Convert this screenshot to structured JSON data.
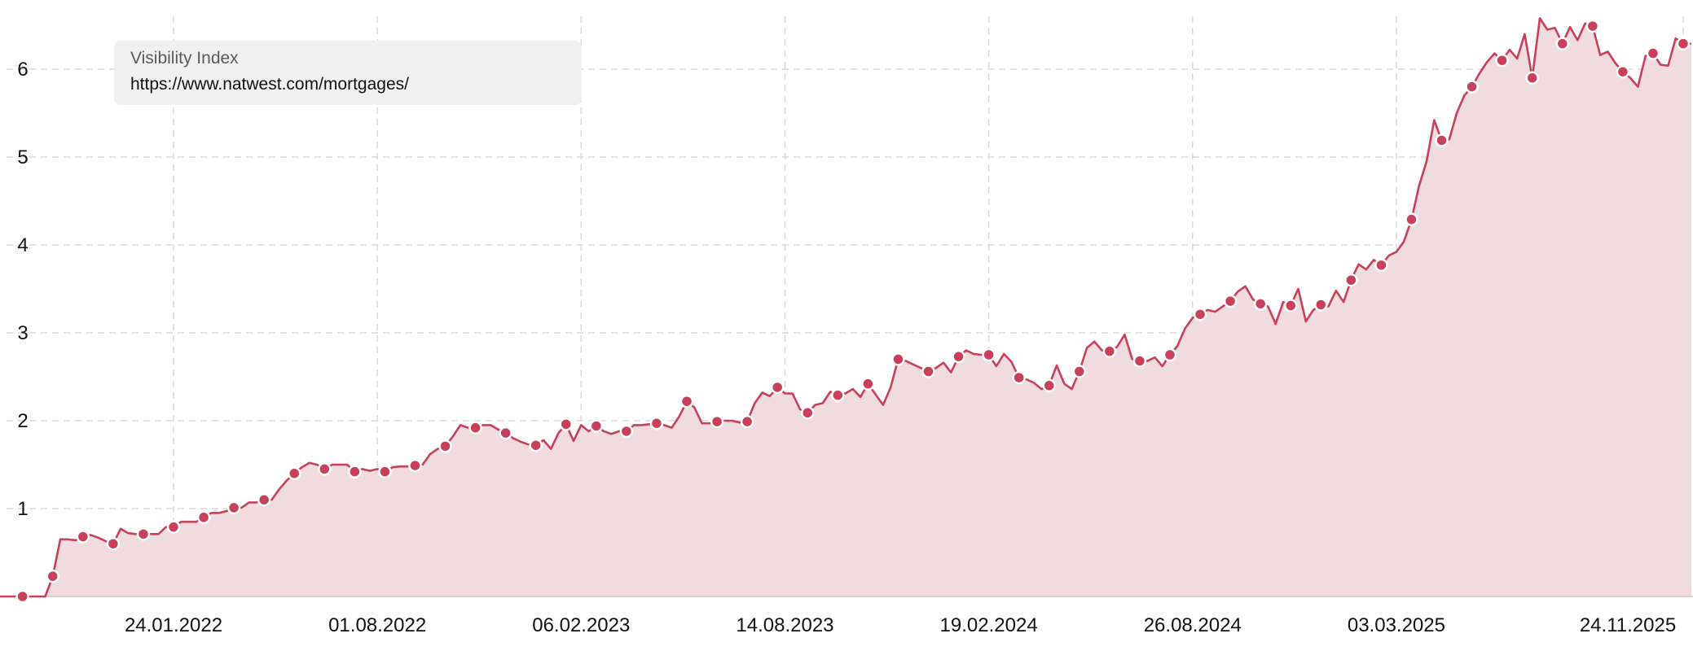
{
  "legend": {
    "title": "Visibility Index",
    "url": "https://www.natwest.com/mortgages/"
  },
  "colors": {
    "line": "#c8405a",
    "fill": "#f0dbde",
    "grid": "#d9d9d9",
    "legend_bg": "#f0f0f0"
  },
  "chart_data": {
    "type": "area",
    "title": "",
    "xlabel": "",
    "ylabel": "",
    "ylim": [
      0,
      6.6
    ],
    "yticks": [
      "1",
      "2",
      "3",
      "4",
      "5",
      "6"
    ],
    "ytick_values": [
      1,
      2,
      3,
      4,
      5,
      6
    ],
    "xticks": [
      "24.01.2022",
      "01.08.2022",
      "06.02.2023",
      "14.08.2023",
      "19.02.2024",
      "26.08.2024",
      "03.03.2025",
      "24.11.2025"
    ],
    "xtick_dates": [
      "2022-01-24",
      "2022-08-01",
      "2023-02-06",
      "2023-08-14",
      "2024-02-19",
      "2024-08-26",
      "2025-03-03",
      "2025-11-24"
    ],
    "grid": true,
    "markers": "every 4th point",
    "series": [
      {
        "name": "https://www.natwest.com/mortgages/",
        "x": [
          "2021-08-16",
          "2021-08-23",
          "2021-08-30",
          "2021-09-06",
          "2021-09-13",
          "2021-09-20",
          "2021-09-27",
          "2021-10-04",
          "2021-10-11",
          "2021-10-18",
          "2021-10-25",
          "2021-11-01",
          "2021-11-08",
          "2021-11-15",
          "2021-11-22",
          "2021-11-29",
          "2021-12-06",
          "2021-12-13",
          "2021-12-20",
          "2021-12-27",
          "2022-01-03",
          "2022-01-10",
          "2022-01-17",
          "2022-01-24",
          "2022-01-31",
          "2022-02-07",
          "2022-02-14",
          "2022-02-21",
          "2022-02-28",
          "2022-03-07",
          "2022-03-14",
          "2022-03-21",
          "2022-03-28",
          "2022-04-04",
          "2022-04-11",
          "2022-04-18",
          "2022-04-25",
          "2022-05-02",
          "2022-05-09",
          "2022-05-16",
          "2022-05-23",
          "2022-05-30",
          "2022-06-06",
          "2022-06-13",
          "2022-06-20",
          "2022-06-27",
          "2022-07-04",
          "2022-07-11",
          "2022-07-18",
          "2022-07-25",
          "2022-08-01",
          "2022-08-08",
          "2022-08-15",
          "2022-08-22",
          "2022-08-29",
          "2022-09-05",
          "2022-09-12",
          "2022-09-19",
          "2022-09-26",
          "2022-10-03",
          "2022-10-10",
          "2022-10-17",
          "2022-10-24",
          "2022-10-31",
          "2022-11-07",
          "2022-11-14",
          "2022-11-21",
          "2022-11-28",
          "2022-12-05",
          "2022-12-12",
          "2022-12-19",
          "2022-12-26",
          "2023-01-02",
          "2023-01-09",
          "2023-01-16",
          "2023-01-23",
          "2023-01-30",
          "2023-02-06",
          "2023-02-13",
          "2023-02-20",
          "2023-02-27",
          "2023-03-06",
          "2023-03-13",
          "2023-03-20",
          "2023-03-27",
          "2023-04-03",
          "2023-04-10",
          "2023-04-17",
          "2023-04-24",
          "2023-05-01",
          "2023-05-08",
          "2023-05-15",
          "2023-05-22",
          "2023-05-29",
          "2023-06-05",
          "2023-06-12",
          "2023-06-19",
          "2023-06-26",
          "2023-07-03",
          "2023-07-10",
          "2023-07-17",
          "2023-07-24",
          "2023-07-31",
          "2023-08-07",
          "2023-08-14",
          "2023-08-21",
          "2023-08-28",
          "2023-09-04",
          "2023-09-11",
          "2023-09-18",
          "2023-09-25",
          "2023-10-02",
          "2023-10-09",
          "2023-10-16",
          "2023-10-23",
          "2023-10-30",
          "2023-11-06",
          "2023-11-13",
          "2023-11-20",
          "2023-11-27",
          "2023-12-04",
          "2023-12-11",
          "2023-12-18",
          "2023-12-25",
          "2024-01-01",
          "2024-01-08",
          "2024-01-15",
          "2024-01-22",
          "2024-01-29",
          "2024-02-05",
          "2024-02-12",
          "2024-02-19",
          "2024-02-26",
          "2024-03-04",
          "2024-03-11",
          "2024-03-18",
          "2024-03-25",
          "2024-04-01",
          "2024-04-08",
          "2024-04-15",
          "2024-04-22",
          "2024-04-29",
          "2024-05-06",
          "2024-05-13",
          "2024-05-20",
          "2024-05-27",
          "2024-06-03",
          "2024-06-10",
          "2024-06-17",
          "2024-06-24",
          "2024-07-01",
          "2024-07-08",
          "2024-07-15",
          "2024-07-22",
          "2024-07-29",
          "2024-08-05",
          "2024-08-12",
          "2024-08-19",
          "2024-08-26",
          "2024-09-02",
          "2024-09-09",
          "2024-09-16",
          "2024-09-23",
          "2024-09-30",
          "2024-10-07",
          "2024-10-14",
          "2024-10-21",
          "2024-10-28",
          "2024-11-04",
          "2024-11-11",
          "2024-11-18",
          "2024-11-25",
          "2024-12-02",
          "2024-12-09",
          "2024-12-16",
          "2024-12-23",
          "2024-12-30",
          "2025-01-06",
          "2025-01-13",
          "2025-01-20",
          "2025-01-27",
          "2025-02-03",
          "2025-02-10",
          "2025-02-17",
          "2025-02-24",
          "2025-03-03",
          "2025-03-10",
          "2025-03-17",
          "2025-03-24",
          "2025-03-31",
          "2025-04-07",
          "2025-04-14",
          "2025-04-21",
          "2025-04-28",
          "2025-05-05",
          "2025-05-12",
          "2025-05-19",
          "2025-05-26",
          "2025-06-02",
          "2025-06-09",
          "2025-06-16",
          "2025-06-23",
          "2025-06-30",
          "2025-07-07",
          "2025-07-14",
          "2025-07-21",
          "2025-07-28",
          "2025-08-04",
          "2025-08-11",
          "2025-08-18",
          "2025-08-25",
          "2025-09-01",
          "2025-09-08",
          "2025-09-15",
          "2025-09-22",
          "2025-09-29",
          "2025-10-06",
          "2025-10-13",
          "2025-10-20",
          "2025-10-27",
          "2025-11-03",
          "2025-11-10",
          "2025-11-17",
          "2025-11-24"
        ],
        "values": [
          0,
          0,
          0,
          0,
          0,
          0,
          0,
          0.23,
          0.65,
          0.65,
          0.64,
          0.68,
          0.7,
          0.67,
          0.63,
          0.6,
          0.77,
          0.72,
          0.71,
          0.71,
          0.71,
          0.71,
          0.79,
          0.79,
          0.85,
          0.85,
          0.85,
          0.9,
          0.95,
          0.95,
          0.97,
          1.01,
          1.01,
          1.07,
          1.07,
          1.1,
          1.1,
          1.22,
          1.32,
          1.4,
          1.47,
          1.52,
          1.5,
          1.45,
          1.5,
          1.5,
          1.5,
          1.42,
          1.45,
          1.43,
          1.45,
          1.42,
          1.47,
          1.48,
          1.48,
          1.49,
          1.5,
          1.62,
          1.68,
          1.71,
          1.82,
          1.95,
          1.92,
          1.92,
          1.95,
          1.95,
          1.9,
          1.86,
          1.8,
          1.76,
          1.73,
          1.72,
          1.78,
          1.68,
          1.86,
          1.96,
          1.77,
          1.95,
          1.88,
          1.94,
          1.88,
          1.85,
          1.88,
          1.88,
          1.95,
          1.95,
          1.96,
          1.97,
          1.95,
          1.92,
          2.05,
          2.22,
          2.15,
          1.97,
          1.97,
          1.99,
          2.0,
          2.0,
          1.98,
          1.99,
          2.2,
          2.32,
          2.28,
          2.38,
          2.31,
          2.31,
          2.13,
          2.09,
          2.18,
          2.2,
          2.33,
          2.29,
          2.31,
          2.36,
          2.27,
          2.42,
          2.3,
          2.18,
          2.38,
          2.7,
          2.68,
          2.64,
          2.6,
          2.56,
          2.6,
          2.66,
          2.55,
          2.73,
          2.8,
          2.76,
          2.75,
          2.75,
          2.62,
          2.76,
          2.67,
          2.49,
          2.47,
          2.43,
          2.36,
          2.4,
          2.63,
          2.42,
          2.36,
          2.56,
          2.83,
          2.9,
          2.8,
          2.79,
          2.84,
          2.98,
          2.7,
          2.68,
          2.68,
          2.72,
          2.62,
          2.75,
          2.85,
          3.05,
          3.17,
          3.21,
          3.26,
          3.24,
          3.3,
          3.36,
          3.47,
          3.53,
          3.38,
          3.33,
          3.3,
          3.1,
          3.35,
          3.31,
          3.5,
          3.13,
          3.26,
          3.32,
          3.3,
          3.48,
          3.35,
          3.6,
          3.78,
          3.72,
          3.83,
          3.77,
          3.88,
          3.92,
          4.04,
          4.29,
          4.67,
          4.95,
          5.42,
          5.19,
          5.2,
          5.5,
          5.7,
          5.8,
          5.95,
          6.08,
          6.18,
          6.1,
          6.22,
          6.12,
          6.4,
          5.9,
          6.58,
          6.45,
          6.47,
          6.29,
          6.48,
          6.33,
          6.52,
          6.49,
          6.16,
          6.2,
          6.07,
          5.97,
          5.9,
          5.8,
          6.15,
          6.18,
          6.05,
          6.04,
          6.35,
          6.29
        ]
      }
    ]
  }
}
